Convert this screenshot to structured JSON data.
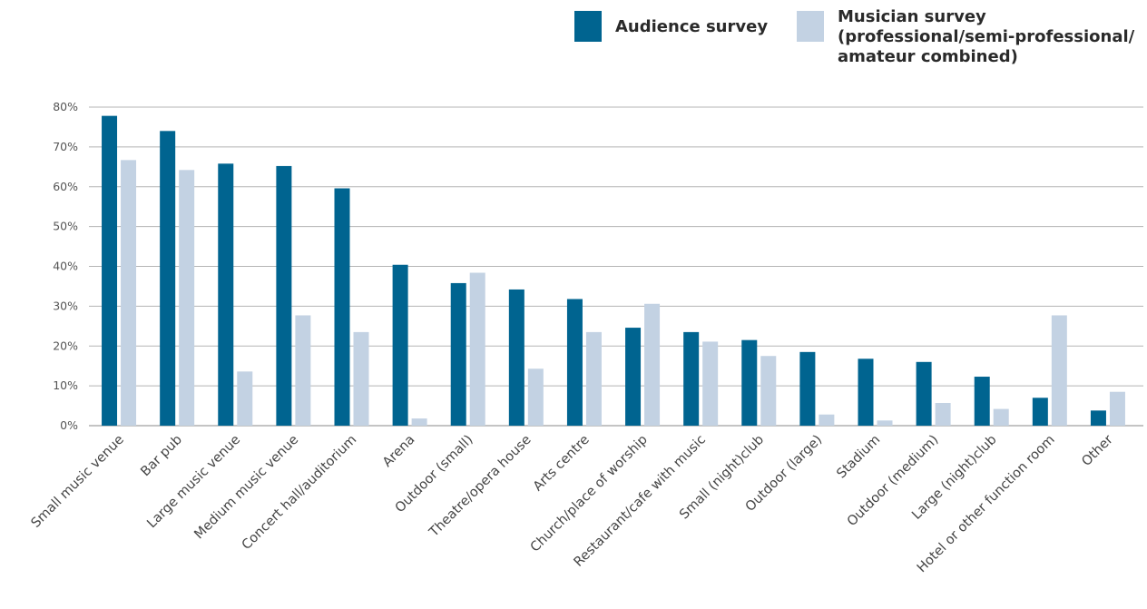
{
  "chart_data": {
    "type": "bar",
    "title": "",
    "xlabel": "",
    "ylabel": "",
    "ylim": [
      0,
      80
    ],
    "yticks": [
      0,
      10,
      20,
      30,
      40,
      50,
      60,
      70,
      80
    ],
    "ytick_labels": [
      "0%",
      "10%",
      "20%",
      "30%",
      "40%",
      "50%",
      "60%",
      "70%",
      "80%"
    ],
    "grid": true,
    "legend_position": "top-right",
    "categories": [
      "Small music venue",
      "Bar pub",
      "Large music venue",
      "Medium music venue",
      "Concert hall/auditorium",
      "Arena",
      "Outdoor (small)",
      "Theatre/opera house",
      "Arts centre",
      "Church/place of worship",
      "Restaurant/cafe with music",
      "Small (night)club",
      "Outdoor (large)",
      "Stadium",
      "Outdoor (medium)",
      "Large (night)club",
      "Hotel or other function room",
      "Other"
    ],
    "series": [
      {
        "name": "Audience survey",
        "color": "#006490",
        "values": [
          77.8,
          74.0,
          65.8,
          65.2,
          59.6,
          40.4,
          35.8,
          34.2,
          31.8,
          24.6,
          23.5,
          21.5,
          18.5,
          16.8,
          16.0,
          12.3,
          7.0,
          3.8
        ]
      },
      {
        "name": "Musician survey (professional/semi-professional/ amateur combined)",
        "color": "#c3d2e3",
        "values": [
          66.7,
          64.2,
          13.6,
          27.7,
          23.5,
          1.8,
          38.4,
          14.3,
          23.5,
          30.6,
          21.1,
          17.5,
          2.8,
          1.3,
          5.7,
          4.2,
          27.7,
          8.5
        ]
      }
    ]
  }
}
